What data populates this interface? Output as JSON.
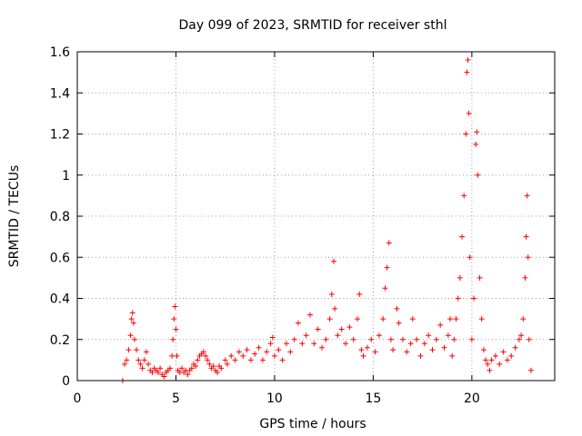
{
  "chart_data": {
    "type": "scatter",
    "title": "Day 099 of 2023, SRMTID for receiver sthl",
    "xlabel": "GPS time / hours",
    "ylabel": "SRMTID / TECUs",
    "xlim": [
      0,
      24.2
    ],
    "ylim": [
      0,
      1.6
    ],
    "xticks": [
      0,
      5,
      10,
      15,
      20
    ],
    "xtick_labels": [
      "0",
      "5",
      "10",
      "15",
      "20"
    ],
    "yticks": [
      0,
      0.2,
      0.4,
      0.6,
      0.8,
      1.0,
      1.2,
      1.4,
      1.6
    ],
    "ytick_labels": [
      "0",
      "0.2",
      "0.4",
      "0.6",
      "0.8",
      "1",
      "1.2",
      "1.4",
      "1.6"
    ],
    "grid": true,
    "marker": "plus",
    "color": "#ff0000",
    "series": [
      {
        "name": "SRMTID",
        "points": [
          [
            2.3,
            0.0
          ],
          [
            2.4,
            0.08
          ],
          [
            2.5,
            0.1
          ],
          [
            2.6,
            0.15
          ],
          [
            2.7,
            0.22
          ],
          [
            2.75,
            0.3
          ],
          [
            2.8,
            0.33
          ],
          [
            2.85,
            0.28
          ],
          [
            2.9,
            0.2
          ],
          [
            3.0,
            0.15
          ],
          [
            3.1,
            0.1
          ],
          [
            3.2,
            0.08
          ],
          [
            3.3,
            0.06
          ],
          [
            3.4,
            0.1
          ],
          [
            3.5,
            0.14
          ],
          [
            3.6,
            0.08
          ],
          [
            3.7,
            0.05
          ],
          [
            3.8,
            0.04
          ],
          [
            3.9,
            0.06
          ],
          [
            4.0,
            0.05
          ],
          [
            4.1,
            0.04
          ],
          [
            4.2,
            0.06
          ],
          [
            4.3,
            0.03
          ],
          [
            4.4,
            0.02
          ],
          [
            4.5,
            0.04
          ],
          [
            4.6,
            0.05
          ],
          [
            4.7,
            0.06
          ],
          [
            4.8,
            0.12
          ],
          [
            4.85,
            0.2
          ],
          [
            4.9,
            0.3
          ],
          [
            4.95,
            0.36
          ],
          [
            5.0,
            0.25
          ],
          [
            5.05,
            0.12
          ],
          [
            5.1,
            0.05
          ],
          [
            5.2,
            0.04
          ],
          [
            5.3,
            0.06
          ],
          [
            5.4,
            0.04
          ],
          [
            5.5,
            0.05
          ],
          [
            5.6,
            0.03
          ],
          [
            5.7,
            0.05
          ],
          [
            5.8,
            0.06
          ],
          [
            5.9,
            0.08
          ],
          [
            6.0,
            0.07
          ],
          [
            6.1,
            0.1
          ],
          [
            6.2,
            0.12
          ],
          [
            6.3,
            0.13
          ],
          [
            6.4,
            0.14
          ],
          [
            6.5,
            0.12
          ],
          [
            6.6,
            0.1
          ],
          [
            6.7,
            0.08
          ],
          [
            6.8,
            0.06
          ],
          [
            6.9,
            0.07
          ],
          [
            7.0,
            0.05
          ],
          [
            7.1,
            0.04
          ],
          [
            7.2,
            0.07
          ],
          [
            7.3,
            0.06
          ],
          [
            7.5,
            0.1
          ],
          [
            7.6,
            0.08
          ],
          [
            7.8,
            0.12
          ],
          [
            8.0,
            0.1
          ],
          [
            8.2,
            0.14
          ],
          [
            8.4,
            0.12
          ],
          [
            8.6,
            0.15
          ],
          [
            8.8,
            0.1
          ],
          [
            9.0,
            0.13
          ],
          [
            9.2,
            0.16
          ],
          [
            9.4,
            0.1
          ],
          [
            9.6,
            0.14
          ],
          [
            9.8,
            0.18
          ],
          [
            9.9,
            0.21
          ],
          [
            10.0,
            0.12
          ],
          [
            10.2,
            0.15
          ],
          [
            10.4,
            0.1
          ],
          [
            10.6,
            0.18
          ],
          [
            10.8,
            0.14
          ],
          [
            11.0,
            0.2
          ],
          [
            11.2,
            0.28
          ],
          [
            11.4,
            0.18
          ],
          [
            11.6,
            0.22
          ],
          [
            11.8,
            0.32
          ],
          [
            12.0,
            0.18
          ],
          [
            12.2,
            0.25
          ],
          [
            12.4,
            0.16
          ],
          [
            12.6,
            0.2
          ],
          [
            12.8,
            0.3
          ],
          [
            12.9,
            0.42
          ],
          [
            13.0,
            0.58
          ],
          [
            13.05,
            0.35
          ],
          [
            13.2,
            0.22
          ],
          [
            13.4,
            0.25
          ],
          [
            13.6,
            0.18
          ],
          [
            13.8,
            0.26
          ],
          [
            14.0,
            0.2
          ],
          [
            14.2,
            0.3
          ],
          [
            14.3,
            0.42
          ],
          [
            14.4,
            0.15
          ],
          [
            14.5,
            0.12
          ],
          [
            14.7,
            0.16
          ],
          [
            14.9,
            0.2
          ],
          [
            15.1,
            0.14
          ],
          [
            15.3,
            0.22
          ],
          [
            15.5,
            0.3
          ],
          [
            15.6,
            0.45
          ],
          [
            15.7,
            0.55
          ],
          [
            15.8,
            0.67
          ],
          [
            15.9,
            0.2
          ],
          [
            16.0,
            0.15
          ],
          [
            16.2,
            0.35
          ],
          [
            16.3,
            0.28
          ],
          [
            16.5,
            0.2
          ],
          [
            16.7,
            0.14
          ],
          [
            16.9,
            0.18
          ],
          [
            17.0,
            0.3
          ],
          [
            17.2,
            0.2
          ],
          [
            17.4,
            0.12
          ],
          [
            17.6,
            0.18
          ],
          [
            17.8,
            0.22
          ],
          [
            18.0,
            0.15
          ],
          [
            18.2,
            0.2
          ],
          [
            18.4,
            0.27
          ],
          [
            18.6,
            0.16
          ],
          [
            18.8,
            0.22
          ],
          [
            18.9,
            0.3
          ],
          [
            19.0,
            0.12
          ],
          [
            19.1,
            0.2
          ],
          [
            19.2,
            0.3
          ],
          [
            19.3,
            0.4
          ],
          [
            19.4,
            0.5
          ],
          [
            19.5,
            0.7
          ],
          [
            19.6,
            0.9
          ],
          [
            19.7,
            1.2
          ],
          [
            19.75,
            1.5
          ],
          [
            19.8,
            1.56
          ],
          [
            19.85,
            1.3
          ],
          [
            19.9,
            0.6
          ],
          [
            20.0,
            0.2
          ],
          [
            20.1,
            0.4
          ],
          [
            20.2,
            1.15
          ],
          [
            20.25,
            1.21
          ],
          [
            20.3,
            1.0
          ],
          [
            20.4,
            0.5
          ],
          [
            20.5,
            0.3
          ],
          [
            20.6,
            0.15
          ],
          [
            20.7,
            0.1
          ],
          [
            20.8,
            0.08
          ],
          [
            20.9,
            0.05
          ],
          [
            21.0,
            0.1
          ],
          [
            21.2,
            0.12
          ],
          [
            21.4,
            0.08
          ],
          [
            21.6,
            0.14
          ],
          [
            21.8,
            0.1
          ],
          [
            22.0,
            0.12
          ],
          [
            22.2,
            0.16
          ],
          [
            22.4,
            0.2
          ],
          [
            22.5,
            0.22
          ],
          [
            22.6,
            0.3
          ],
          [
            22.7,
            0.5
          ],
          [
            22.75,
            0.7
          ],
          [
            22.8,
            0.9
          ],
          [
            22.85,
            0.6
          ],
          [
            22.9,
            0.2
          ],
          [
            23.0,
            0.05
          ]
        ]
      }
    ]
  }
}
